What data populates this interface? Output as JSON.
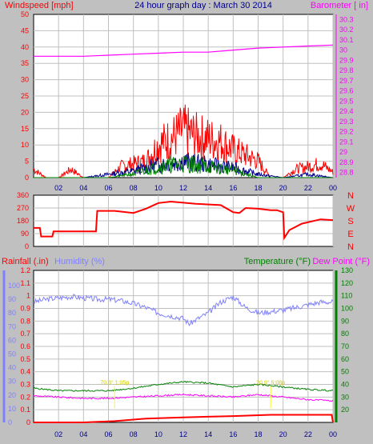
{
  "header": {
    "title": "24 hour graph day : March 30 2014",
    "left_label": "Windspeed [mph]",
    "right_label": "Barometer [ in]",
    "rain_label": "Rainfall (.in)",
    "humidity_label": "Humidity (%)",
    "temp_label": "Temperature (°F)",
    "dew_label": "Dew Point (°F)"
  },
  "colors": {
    "background": "#c0c0c0",
    "plot": "#ffffff",
    "wind": "#ff0000",
    "gust_mid": "#00008b",
    "avg": "#008000",
    "barometer": "#ff00ff",
    "humidity": "#8080ff",
    "temperature": "#008000",
    "dewpoint": "#ff00ff",
    "rain": "#ff0000",
    "grid": "#c0c0c0",
    "title": "#00008b"
  },
  "chart_data": [
    {
      "type": "line",
      "name": "wind-barometer",
      "title": "24 hour graph day : March 30 2014",
      "x_ticks": [
        "02",
        "04",
        "06",
        "08",
        "10",
        "12",
        "14",
        "16",
        "18",
        "20",
        "22",
        "00"
      ],
      "y_left_ticks": [
        "0",
        "5",
        "10",
        "15",
        "20",
        "25",
        "30",
        "35",
        "40",
        "45",
        "50"
      ],
      "y_right_ticks": [
        "28.8",
        "28.9",
        "29",
        "29.1",
        "29.2",
        "29.3",
        "29.4",
        "29.5",
        "29.6",
        "29.7",
        "29.8",
        "29.9",
        "30",
        "30.1",
        "30.2",
        "30.3"
      ],
      "ylabel_left": "Windspeed [mph]",
      "ylabel_right": "Barometer [ in]",
      "ylim_left": [
        0,
        50
      ],
      "ylim_right": [
        28.75,
        30.35
      ],
      "grid": true,
      "series": [
        {
          "role": "barometer",
          "axis": "right",
          "x": [
            0,
            2,
            4,
            6,
            8,
            10,
            12,
            14,
            16,
            18,
            20,
            22,
            24
          ],
          "values": [
            29.94,
            29.94,
            29.94,
            29.95,
            29.96,
            29.97,
            29.98,
            29.98,
            30.0,
            30.02,
            30.03,
            30.04,
            30.05
          ]
        },
        {
          "role": "wind-gust",
          "axis": "left",
          "x": [
            0,
            1,
            2,
            3,
            4,
            5,
            6,
            7,
            8,
            9,
            10,
            11,
            12,
            13,
            14,
            15,
            16,
            17,
            18,
            19,
            20,
            21,
            22,
            23,
            24
          ],
          "values": [
            3,
            0,
            0,
            3,
            0,
            0,
            0,
            4,
            5,
            6,
            12,
            14,
            17,
            15,
            14,
            13,
            10,
            8,
            6,
            0,
            0,
            3,
            4,
            5,
            2
          ]
        },
        {
          "role": "wind-speed",
          "axis": "left",
          "x": [
            0,
            2,
            4,
            6,
            8,
            10,
            12,
            14,
            16,
            18,
            20,
            22,
            24
          ],
          "values": [
            0,
            0,
            0,
            1,
            2,
            4,
            5,
            4,
            3,
            1,
            0,
            1,
            0
          ]
        },
        {
          "role": "wind-average",
          "axis": "left",
          "x": [
            0,
            2,
            4,
            6,
            8,
            10,
            12,
            14,
            16,
            18,
            20,
            22,
            24
          ],
          "values": [
            0,
            0,
            0,
            0,
            1,
            3,
            4,
            3,
            2,
            0,
            0,
            0,
            0
          ]
        }
      ]
    },
    {
      "type": "line",
      "name": "wind-direction",
      "y_left_ticks": [
        "0",
        "90",
        "180",
        "270",
        "360"
      ],
      "y_right_labels": [
        "N",
        "W",
        "S",
        "E",
        "N"
      ],
      "ylim": [
        0,
        360
      ],
      "grid": true,
      "series": [
        {
          "role": "direction",
          "x": [
            0,
            0.5,
            0.6,
            1.5,
            1.6,
            5.0,
            5.1,
            6.5,
            8.0,
            8.5,
            9.0,
            10.0,
            11.0,
            13.0,
            15.0,
            16.0,
            16.5,
            17.0,
            18.0,
            19.0,
            19.5,
            20.0,
            20.1,
            20.5,
            21.5,
            23.0,
            24
          ],
          "values": [
            130,
            130,
            70,
            70,
            105,
            105,
            250,
            250,
            235,
            250,
            265,
            305,
            315,
            300,
            290,
            240,
            235,
            270,
            265,
            255,
            255,
            240,
            60,
            115,
            160,
            190,
            185
          ]
        }
      ]
    },
    {
      "type": "line",
      "name": "rain-humidity-temperature",
      "ylabel_left": "Rainfall (.in)",
      "ylabel_humidity": "Humidity (%)",
      "ylabel_right": "Temperature (°F)",
      "ylabel_right2": "Dew Point (°F)",
      "rain_ticks": [
        "0",
        "0.1",
        "0.2",
        "0.3",
        "0.4",
        "0.5",
        "0.6",
        "0.7",
        "0.8",
        "0.9",
        "1",
        "1.1",
        "1.2"
      ],
      "humidity_ticks": [
        "0",
        "10",
        "20",
        "30",
        "40",
        "50",
        "60",
        "70",
        "80",
        "90",
        "100"
      ],
      "temp_ticks": [
        "20",
        "30",
        "40",
        "50",
        "60",
        "70",
        "80",
        "90",
        "100",
        "110",
        "120",
        "130"
      ],
      "ylim_rain": [
        0,
        1.2
      ],
      "ylim_temp": [
        10,
        130
      ],
      "annotations": [
        "70.3° 1:05p",
        "20.9° 5:08p"
      ],
      "grid": true,
      "series": [
        {
          "role": "humidity",
          "axis": "humidity",
          "x": [
            0,
            1,
            2,
            3,
            4,
            5,
            6,
            7,
            8,
            9,
            10,
            11,
            12,
            12.5,
            13,
            14,
            15,
            16,
            16.5,
            17,
            18,
            19,
            20,
            21,
            22,
            23,
            24
          ],
          "values": [
            88,
            90,
            91,
            92,
            91,
            90,
            90,
            89,
            87,
            84,
            80,
            78,
            76,
            72,
            75,
            80,
            88,
            92,
            88,
            84,
            80,
            81,
            82,
            84,
            86,
            88,
            88
          ]
        },
        {
          "role": "temperature",
          "axis": "temp",
          "x": [
            0,
            2,
            4,
            6,
            8,
            10,
            12,
            14,
            16,
            18,
            20,
            22,
            24
          ],
          "values": [
            37,
            35,
            35,
            35,
            37,
            40,
            42,
            41,
            38,
            40,
            38,
            36,
            35
          ]
        },
        {
          "role": "dewpoint",
          "axis": "temp",
          "x": [
            0,
            2,
            4,
            6,
            8,
            10,
            12,
            14,
            16,
            18,
            20,
            22,
            24
          ],
          "values": [
            31,
            30,
            29,
            29,
            30,
            31,
            32,
            31,
            30,
            32,
            30,
            28,
            27
          ]
        },
        {
          "role": "rain",
          "axis": "rain",
          "x": [
            0,
            4,
            6.5,
            9,
            12,
            16,
            19,
            23.9,
            24
          ],
          "values": [
            0,
            0,
            0.01,
            0.03,
            0.04,
            0.05,
            0.06,
            0.06,
            0
          ]
        }
      ]
    }
  ]
}
